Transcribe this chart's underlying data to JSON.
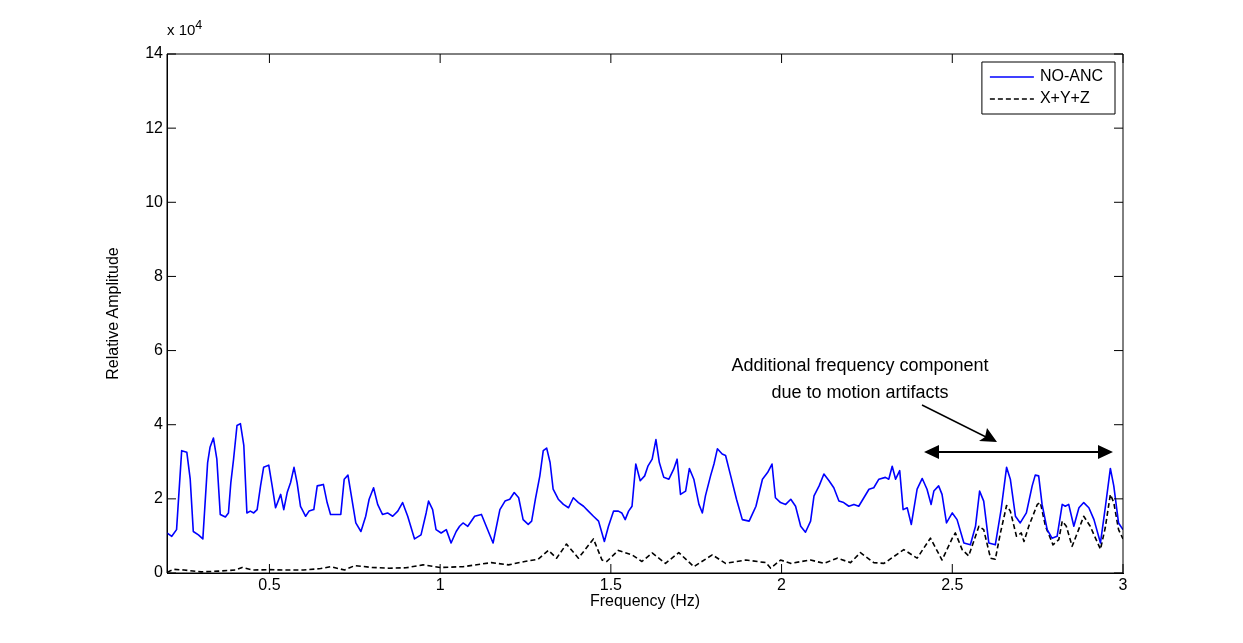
{
  "chart_data": {
    "type": "line",
    "xlabel": "Frequency (Hz)",
    "ylabel": "Relative Amplitude",
    "xlim": [
      0.2,
      3
    ],
    "xticks": [
      0.5,
      1,
      1.5,
      2,
      2.5,
      3
    ],
    "ylim": [
      0,
      14
    ],
    "yticks": [
      0,
      2,
      4,
      6,
      8,
      10,
      12,
      14
    ],
    "grid": false,
    "legend": "top right",
    "annotations": [
      "x 10$^{4}$",
      "Additional frequency component due to motion artifacts"
    ],
    "series": [
      {
        "name": "NO-ANC",
        "color": "#0000ff",
        "line_style": "solid",
        "x": [
          0.2,
          0.214,
          0.228,
          0.243,
          0.258,
          0.268,
          0.277,
          0.292,
          0.305,
          0.319,
          0.326,
          0.336,
          0.346,
          0.356,
          0.371,
          0.38,
          0.387,
          0.395,
          0.405,
          0.415,
          0.425,
          0.434,
          0.444,
          0.454,
          0.464,
          0.474,
          0.483,
          0.498,
          0.508,
          0.518,
          0.533,
          0.542,
          0.552,
          0.562,
          0.572,
          0.581,
          0.591,
          0.606,
          0.616,
          0.63,
          0.64,
          0.65,
          0.658,
          0.669,
          0.679,
          0.694,
          0.709,
          0.719,
          0.73,
          0.74,
          0.753,
          0.768,
          0.782,
          0.792,
          0.805,
          0.817,
          0.831,
          0.846,
          0.861,
          0.876,
          0.89,
          0.905,
          0.925,
          0.944,
          0.959,
          0.966,
          0.978,
          0.988,
          1.003,
          1.018,
          1.032,
          1.047,
          1.057,
          1.067,
          1.081,
          1.101,
          1.121,
          1.135,
          1.155,
          1.175,
          1.19,
          1.204,
          1.217,
          1.23,
          1.243,
          1.258,
          1.268,
          1.279,
          1.292,
          1.302,
          1.312,
          1.322,
          1.331,
          1.346,
          1.361,
          1.376,
          1.39,
          1.405,
          1.42,
          1.434,
          1.449,
          1.464,
          1.481,
          1.493,
          1.508,
          1.522,
          1.532,
          1.542,
          1.552,
          1.562,
          1.573,
          1.586,
          1.599,
          1.609,
          1.621,
          1.632,
          1.642,
          1.655,
          1.67,
          1.684,
          1.694,
          1.704,
          1.719,
          1.73,
          1.743,
          1.758,
          1.768,
          1.777,
          1.792,
          1.802,
          1.812,
          1.826,
          1.836,
          1.851,
          1.868,
          1.885,
          1.905,
          1.925,
          1.944,
          1.959,
          1.972,
          1.982,
          1.997,
          2.012,
          2.027,
          2.041,
          2.056,
          2.07,
          2.085,
          2.095,
          2.11,
          2.124,
          2.139,
          2.153,
          2.168,
          2.182,
          2.197,
          2.212,
          2.226,
          2.241,
          2.256,
          2.27,
          2.285,
          2.304,
          2.314,
          2.324,
          2.334,
          2.346,
          2.356,
          2.368,
          2.38,
          2.397,
          2.412,
          2.426,
          2.438,
          2.446,
          2.46,
          2.47,
          2.483,
          2.5,
          2.514,
          2.534,
          2.553,
          2.568,
          2.58,
          2.592,
          2.607,
          2.626,
          2.643,
          2.659,
          2.67,
          2.685,
          2.699,
          2.717,
          2.734,
          2.743,
          2.753,
          2.763,
          2.778,
          2.792,
          2.807,
          2.822,
          2.831,
          2.841,
          2.856,
          2.871,
          2.885,
          2.9,
          2.915,
          2.934,
          2.948,
          2.963,
          2.973,
          2.987,
          3.0
        ],
        "values": [
          1.08,
          0.99,
          1.17,
          3.3,
          3.26,
          2.53,
          1.12,
          1.03,
          0.92,
          2.98,
          3.39,
          3.64,
          3.07,
          1.58,
          1.51,
          1.62,
          2.44,
          3.07,
          3.98,
          4.03,
          3.44,
          1.62,
          1.67,
          1.62,
          1.71,
          2.35,
          2.85,
          2.91,
          2.35,
          1.76,
          2.12,
          1.71,
          2.17,
          2.44,
          2.85,
          2.44,
          1.8,
          1.53,
          1.67,
          1.71,
          2.35,
          2.37,
          2.39,
          1.9,
          1.58,
          1.58,
          1.58,
          2.53,
          2.64,
          2.08,
          1.35,
          1.12,
          1.53,
          1.99,
          2.3,
          1.85,
          1.58,
          1.62,
          1.53,
          1.67,
          1.9,
          1.53,
          0.92,
          1.03,
          1.62,
          1.94,
          1.71,
          1.17,
          1.08,
          1.17,
          0.81,
          1.12,
          1.26,
          1.35,
          1.26,
          1.53,
          1.58,
          1.26,
          0.81,
          1.71,
          1.94,
          1.99,
          2.17,
          2.03,
          1.44,
          1.31,
          1.4,
          1.99,
          2.62,
          3.3,
          3.37,
          2.98,
          2.26,
          1.99,
          1.85,
          1.76,
          2.03,
          1.9,
          1.8,
          1.67,
          1.53,
          1.4,
          0.85,
          1.26,
          1.67,
          1.67,
          1.62,
          1.44,
          1.67,
          1.8,
          2.94,
          2.49,
          2.62,
          2.89,
          3.07,
          3.6,
          2.98,
          2.58,
          2.53,
          2.8,
          3.07,
          2.12,
          2.21,
          2.82,
          2.53,
          1.85,
          1.62,
          2.08,
          2.62,
          2.94,
          3.35,
          3.21,
          3.17,
          2.62,
          1.99,
          1.44,
          1.4,
          1.8,
          2.53,
          2.71,
          2.94,
          2.03,
          1.9,
          1.85,
          1.99,
          1.8,
          1.26,
          1.1,
          1.4,
          2.08,
          2.35,
          2.67,
          2.49,
          2.3,
          1.94,
          1.9,
          1.8,
          1.85,
          1.8,
          2.03,
          2.26,
          2.3,
          2.53,
          2.58,
          2.53,
          2.88,
          2.53,
          2.76,
          1.71,
          1.76,
          1.31,
          2.26,
          2.55,
          2.26,
          1.85,
          2.21,
          2.35,
          2.12,
          1.35,
          1.62,
          1.44,
          0.81,
          0.76,
          1.26,
          2.21,
          1.94,
          0.81,
          0.76,
          1.71,
          2.85,
          2.53,
          1.53,
          1.35,
          1.62,
          2.35,
          2.64,
          2.62,
          1.85,
          1.17,
          0.94,
          0.99,
          1.85,
          1.8,
          1.85,
          1.26,
          1.76,
          1.9,
          1.76,
          1.44,
          0.81,
          1.76,
          2.82,
          2.35,
          1.35,
          1.17
        ]
      },
      {
        "name": "X+Y+Z",
        "color": "#000000",
        "line_style": "dashed",
        "x": [
          0.2,
          0.22,
          0.25,
          0.3,
          0.35,
          0.4,
          0.42,
          0.45,
          0.5,
          0.55,
          0.6,
          0.65,
          0.68,
          0.72,
          0.75,
          0.8,
          0.85,
          0.9,
          0.95,
          1.0,
          1.067,
          1.15,
          1.2,
          1.248,
          1.287,
          1.317,
          1.341,
          1.37,
          1.405,
          1.449,
          1.474,
          1.488,
          1.522,
          1.562,
          1.591,
          1.621,
          1.66,
          1.699,
          1.743,
          1.797,
          1.836,
          1.895,
          1.954,
          1.968,
          1.997,
          2.026,
          2.085,
          2.124,
          2.163,
          2.202,
          2.231,
          2.27,
          2.3,
          2.358,
          2.397,
          2.436,
          2.47,
          2.5,
          2.509,
          2.529,
          2.548,
          2.578,
          2.592,
          2.612,
          2.626,
          2.641,
          2.659,
          2.67,
          2.688,
          2.702,
          2.71,
          2.724,
          2.749,
          2.758,
          2.773,
          2.795,
          2.812,
          2.822,
          2.834,
          2.851,
          2.87,
          2.885,
          2.904,
          2.934,
          2.948,
          2.963,
          2.973,
          2.987,
          3.0
        ],
        "values": [
          0.02,
          0.1,
          0.08,
          0.03,
          0.05,
          0.08,
          0.15,
          0.08,
          0.09,
          0.08,
          0.08,
          0.12,
          0.17,
          0.08,
          0.2,
          0.15,
          0.13,
          0.14,
          0.22,
          0.15,
          0.17,
          0.28,
          0.22,
          0.31,
          0.37,
          0.61,
          0.4,
          0.78,
          0.4,
          0.92,
          0.35,
          0.31,
          0.61,
          0.49,
          0.31,
          0.54,
          0.26,
          0.55,
          0.17,
          0.49,
          0.26,
          0.35,
          0.28,
          0.13,
          0.35,
          0.26,
          0.35,
          0.26,
          0.4,
          0.28,
          0.55,
          0.28,
          0.26,
          0.63,
          0.4,
          0.94,
          0.35,
          0.94,
          1.08,
          0.63,
          0.46,
          1.26,
          1.17,
          0.4,
          0.37,
          1.08,
          1.82,
          1.67,
          0.99,
          1.08,
          0.85,
          1.26,
          1.85,
          1.9,
          1.26,
          0.76,
          0.9,
          1.4,
          1.26,
          0.72,
          1.17,
          1.53,
          1.26,
          0.64,
          1.22,
          2.12,
          1.9,
          1.17,
          0.92
        ]
      }
    ]
  }
}
